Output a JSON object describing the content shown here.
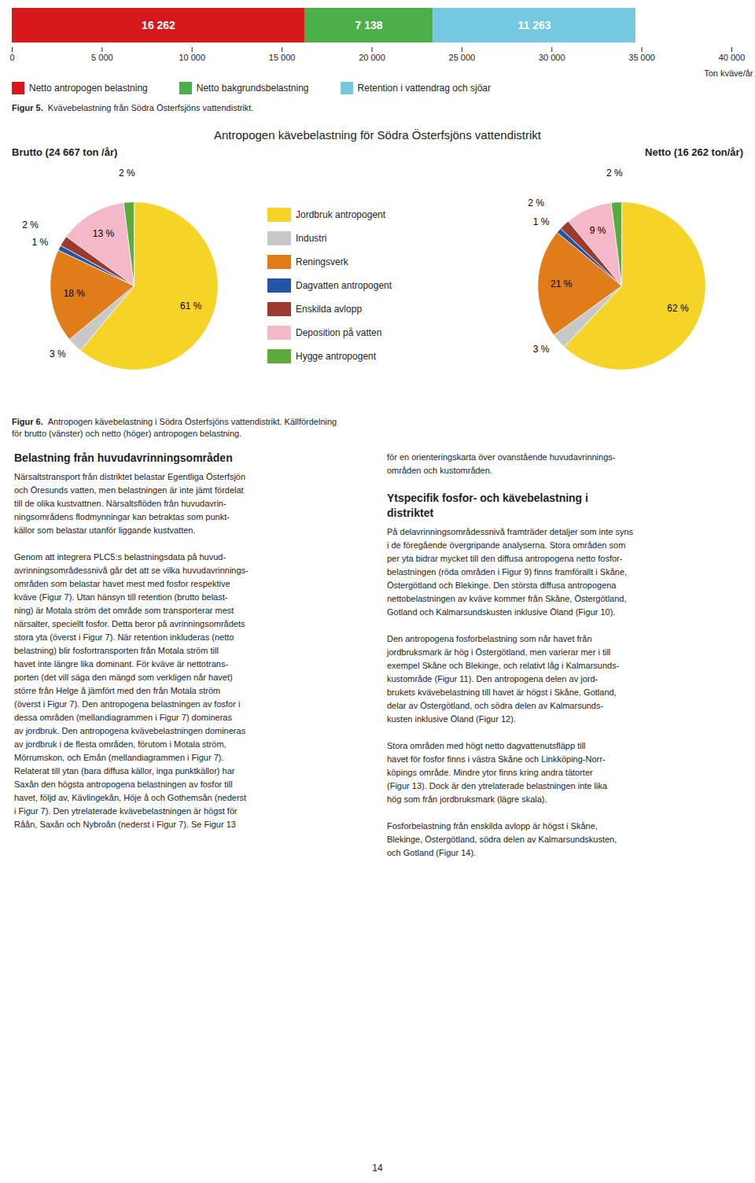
{
  "chart_data": [
    {
      "type": "bar",
      "orientation": "horizontal",
      "stacked": true,
      "categories": [
        null
      ],
      "series": [
        {
          "name": "Netto antropogen belastning",
          "color": "#d7191c",
          "values": [
            16262
          ],
          "value_labels": [
            "16 262"
          ]
        },
        {
          "name": "Netto bakgrundsbelastning",
          "color": "#4daf4a",
          "values": [
            7138
          ],
          "value_labels": [
            "7 138"
          ]
        },
        {
          "name": "Retention i vattendrag och sjöar",
          "color": "#74c8e0",
          "values": [
            11263
          ],
          "value_labels": [
            "11 263"
          ]
        }
      ],
      "xlim": [
        0,
        40000
      ],
      "xticks": [
        0,
        {
          "value": 5000,
          "label": "5 000"
        },
        {
          "value": 10000,
          "label": "10 000"
        },
        {
          "value": 15000,
          "label": "15 000"
        },
        {
          "value": 20000,
          "label": "20 000"
        },
        {
          "value": 25000,
          "label": "25 000"
        },
        {
          "value": 30000,
          "label": "30 000"
        },
        {
          "value": 35000,
          "label": "35 000"
        },
        {
          "value": 40000,
          "label": "40 000"
        }
      ],
      "xlabel": "Ton kväve/år",
      "data_labels": true,
      "tick_labels": "x",
      "legend": "bottom",
      "annotations": [
        "Figur 5.",
        "Kvävebelastning från Södra Österfsjöns vattendistrikt."
      ]
    },
    {
      "type": "pie",
      "title": "Antropogen kävebelastning för Södra Österfsjöns vattendistrikt",
      "subtitle": "Brutto (24 667 ton /år)",
      "categories": [
        "Jordbruk antropogent",
        "Industri",
        "Reningsverk",
        "Dagvatten antropogent",
        "Enskilda avlopp",
        "Deposition på vatten",
        "Hygge antropogent"
      ],
      "colors": [
        "#f5d327",
        "#c8c8c8",
        "#e07c1a",
        "#2255a4",
        "#9b3a2e",
        "#f5b8c8",
        "#5aaa3c"
      ],
      "values": [
        61,
        3,
        18,
        1,
        2,
        13,
        2
      ],
      "value_labels": [
        "61 %",
        "3 %",
        "18 %",
        "1 %",
        "2 %",
        "13 %",
        "2 %"
      ],
      "data_labels": true,
      "legend": "right"
    },
    {
      "type": "pie",
      "subtitle": "Netto (16 262 ton/år)",
      "categories": [
        "Jordbruk antropogent",
        "Industri",
        "Reningsverk",
        "Dagvatten antropogent",
        "Enskilda avlopp",
        "Deposition på vatten",
        "Hygge antropogent"
      ],
      "colors": [
        "#f5d327",
        "#c8c8c8",
        "#e07c1a",
        "#2255a4",
        "#9b3a2e",
        "#f5b8c8",
        "#5aaa3c"
      ],
      "values": [
        62,
        3,
        21,
        1,
        2,
        9,
        2
      ],
      "value_labels": [
        "62 %",
        "3 %",
        "21 %",
        "1 %",
        "2 %",
        "9 %",
        "2 %"
      ],
      "data_labels": true,
      "annotations": [
        "Figur 6.",
        "Antropogen kävebelastning i Södra Österfsjöns vattendistrikt. Källfördelning",
        "för brutto (vänster) och netto (höger) antropogen belastning."
      ]
    }
  ],
  "page_text": {
    "columns": [
      [
        {
          "heading": [
            "Belastning från huvudavrinningsområden"
          ]
        },
        {
          "lines": [
            "Närsaltstransport från distriktet belastar Egentliga Österfsjön",
            "och Öresunds vatten, men belastningen är inte jämt fördelat",
            "till de olika kustvattnen. Närsaltsflöden från huvudavrin-",
            "ningsområdens flodmynningar kan betraktas som punkt-",
            "källor som belastar utanför liggande kustvatten."
          ]
        },
        {
          "lines": [
            "Genom att integrera PLC5:s belastningsdata på huvud-",
            "avrinningsområdessnivå går det att se vilka huvudavrinnings-",
            "områden som belastar havet mest med fosfor respektive",
            "kväve (Figur 7). Utan hänsyn till retention (brutto belast-",
            "ning) är Motala ström det område som transporterar mest",
            "närsalter, speciellt fosfor. Detta beror på avrinningsområdets",
            "stora yta (överst i Figur 7). När retention inkluderas (netto",
            "belastning) blir fosfortransporten från Motala ström till",
            "havet inte längre lika dominant. För kväve är nettotrans-",
            "porten (det vill säga den mängd som verkligen når havet)",
            "större från Helge å jämfört med den från Motala ström",
            "(överst i Figur 7). Den antropogena belastningen av fosfor i",
            "dessa områden (mellandiagrammen i Figur 7) domineras",
            "av jordbruk. Den antropogena kvävebelastningen domineras",
            "av jordbruk i de flesta områden, förutom i Motala ström,",
            "Mörrumskon, och Emån (mellandiagrammen i Figur 7).",
            "Relaterat till ytan (bara diffusa källor, inga punktkällor) har",
            "Saxån den högsta antropogena belastningen av fosfor till",
            "havet, följd av, Kävlingekån, Höje å och Gothemsån (nederst",
            "i Figur 7). Den ytrelaterade kvävebelastningen är högst för",
            "Råån, Saxån och Nybroån (nederst i Figur 7). Se Figur 13"
          ]
        }
      ],
      [
        {
          "lines": [
            "för en orienteringskarta över ovanstående huvudavrinnings-",
            "områden och kustområden."
          ]
        },
        {
          "heading": [
            "Ytspecifik fosfor- och kävebelastning i",
            "distriktet"
          ]
        },
        {
          "lines": [
            "På delavrinningsområdessnivå framträder detaljer som inte syns",
            "i de föregående övergripande analyserna. Stora områden som",
            "per yta bidrar mycket till den diffusa antropogena netto fosfor-",
            "belastningen (röda områden i Figur 9) finns framförallt i Skåne,",
            "Östergötland och Blekinge. Den största diffusa antropogena",
            "nettobelastningen av kväve kommer från Skåne, Östergötland,",
            "Gotland och Kalmarsundskusten inklusive Öland (Figur 10)."
          ]
        },
        {
          "lines": [
            "Den antropogena fosforbelastning som når havet från",
            "jordbruksmark är hög i Östergötland, men varierar mer i till",
            "exempel Skåne och Blekinge, och relativt låg i Kalmarsunds-",
            "kustområde (Figur 11). Den antropogena delen av jord-",
            "brukets kvävebelastning till havet är högst i Skåne, Gotland,",
            "delar av Östergötland, och södra delen av Kalmarsunds-",
            "kusten inklusive Öland (Figur 12)."
          ]
        },
        {
          "lines": [
            "Stora områden med högt netto dagvattenutsfläpp till",
            "havet för fosfor finns i västra Skåne och Linkköping-Norr-",
            "köpings område. Mindre ytor finns kring andra tätorter",
            "(Figur 13). Dock är den ytrelaterade belastningen inte lika",
            "hög som från jordbruksmark (lägre skala)."
          ]
        },
        {
          "lines": [
            "Fosforbelastning från enskilda avlopp är högst i Skåne,",
            "Blekinge, Östergötland, södra delen av Kalmarsundskusten,",
            "och Gotland (Figur 14)."
          ]
        }
      ]
    ],
    "page_number": "14"
  }
}
